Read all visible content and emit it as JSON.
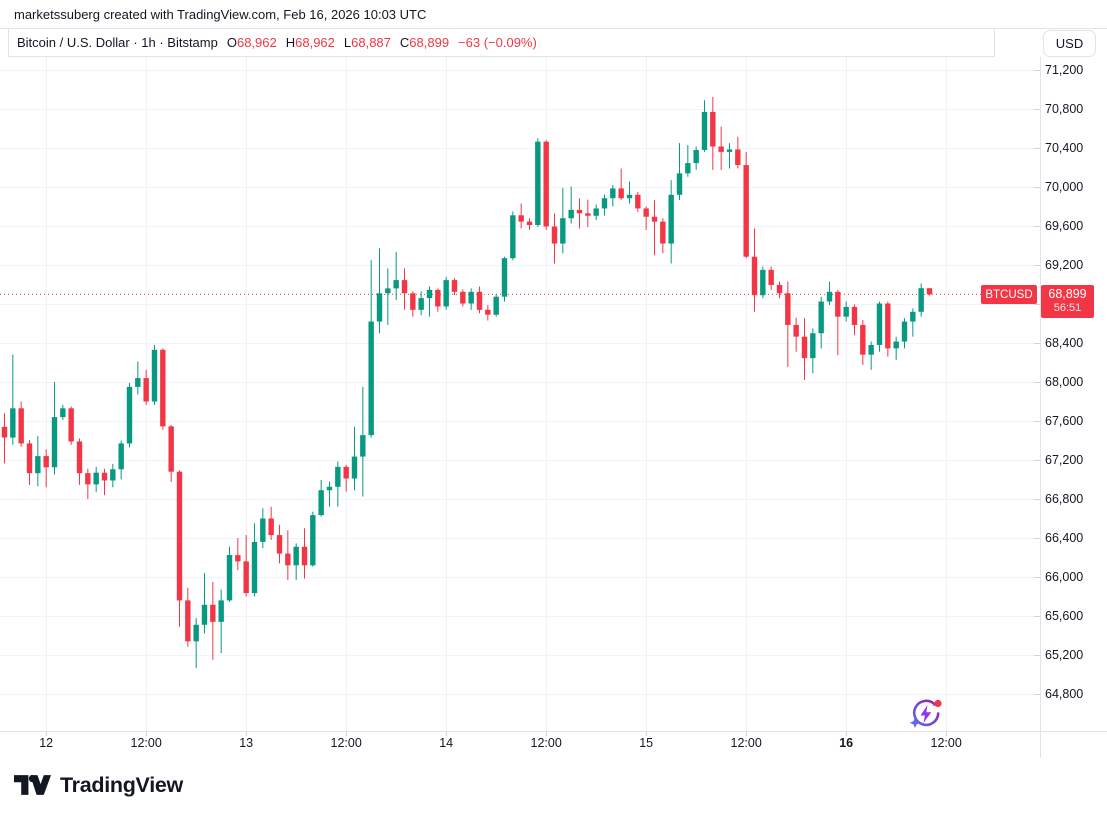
{
  "attribution": "marketssuberg created with TradingView.com, Feb 16, 2026 10:03 UTC",
  "header": {
    "symbol_title": "Bitcoin / U.S. Dollar · 1h · Bitstamp",
    "ohlc_labels": {
      "o": "O",
      "h": "H",
      "l": "L",
      "c": "C"
    },
    "ohlc_values": {
      "o": "68,962",
      "h": "68,962",
      "l": "68,887",
      "c": "68,899"
    },
    "change": "−63 (−0.09%)",
    "currency_button": "USD"
  },
  "price_scale": {
    "price_tag": {
      "price": "68,899",
      "countdown": "56:51"
    }
  },
  "symbol_marker": "BTCUSD",
  "decorations": {
    "bottom_right_icon": "lightning-refresh-icon"
  },
  "footer": {
    "brand": "TradingView"
  },
  "chart_data": {
    "type": "candlestick",
    "title": "Bitcoin / U.S. Dollar",
    "symbol": "BTCUSD",
    "exchange": "Bitstamp",
    "interval": "1h",
    "up_color": "#089981",
    "down_color": "#F23645",
    "grid": true,
    "current_price": 68899,
    "current_price_line": {
      "value": 68899,
      "style": "dotted",
      "color": "#F23645"
    },
    "y_axis": {
      "min": 64800,
      "max": 71200,
      "step": 400,
      "ticks": [
        71200,
        70800,
        70400,
        70000,
        69600,
        69200,
        68800,
        68400,
        68000,
        67600,
        67200,
        66800,
        66400,
        66000,
        65600,
        65200,
        64800
      ]
    },
    "x_axis": {
      "start": "Feb 11 19:00",
      "end": "Feb 16 10:00",
      "ticks": [
        {
          "i": 5,
          "label": "12"
        },
        {
          "i": 17,
          "label": "12:00"
        },
        {
          "i": 29,
          "label": "13"
        },
        {
          "i": 41,
          "label": "12:00"
        },
        {
          "i": 53,
          "label": "14"
        },
        {
          "i": 65,
          "label": "12:00"
        },
        {
          "i": 77,
          "label": "15"
        },
        {
          "i": 89,
          "label": "12:00"
        },
        {
          "i": 101,
          "label": "16",
          "bold": true
        },
        {
          "i": 113,
          "label": "12:00"
        }
      ]
    },
    "candle_fields": [
      "open",
      "high",
      "low",
      "close"
    ],
    "candles": [
      [
        67540,
        67680,
        67165,
        67430
      ],
      [
        67430,
        68280,
        67355,
        67730
      ],
      [
        67730,
        67800,
        67335,
        67370
      ],
      [
        67370,
        67405,
        66945,
        67065
      ],
      [
        67065,
        67445,
        66930,
        67240
      ],
      [
        67240,
        67310,
        66920,
        67125
      ],
      [
        67125,
        68000,
        67050,
        67640
      ],
      [
        67640,
        67765,
        67610,
        67730
      ],
      [
        67730,
        67750,
        67355,
        67390
      ],
      [
        67390,
        67420,
        66945,
        67065
      ],
      [
        67065,
        67110,
        66800,
        66950
      ],
      [
        66950,
        67130,
        66870,
        67070
      ],
      [
        67070,
        67110,
        66840,
        66990
      ],
      [
        66990,
        67160,
        66920,
        67105
      ],
      [
        67105,
        67400,
        67000,
        67370
      ],
      [
        67370,
        67990,
        67330,
        67950
      ],
      [
        67950,
        68210,
        67870,
        68040
      ],
      [
        68040,
        68125,
        67765,
        67800
      ],
      [
        67800,
        68380,
        67765,
        68330
      ],
      [
        68330,
        68345,
        67510,
        67545
      ],
      [
        67545,
        67560,
        66975,
        67080
      ],
      [
        67080,
        67095,
        65490,
        65760
      ],
      [
        65760,
        65890,
        65285,
        65340
      ],
      [
        65340,
        65580,
        65065,
        65510
      ],
      [
        65510,
        66040,
        65420,
        65715
      ],
      [
        65715,
        65950,
        65150,
        65540
      ],
      [
        65540,
        65870,
        65220,
        65760
      ],
      [
        65760,
        66310,
        65745,
        66225
      ],
      [
        66225,
        66400,
        66070,
        66160
      ],
      [
        66160,
        66430,
        65800,
        65835
      ],
      [
        65835,
        66550,
        65800,
        66360
      ],
      [
        66360,
        66705,
        66295,
        66600
      ],
      [
        66600,
        66720,
        66380,
        66430
      ],
      [
        66430,
        66535,
        66140,
        66240
      ],
      [
        66240,
        66480,
        65970,
        66120
      ],
      [
        66120,
        66345,
        65970,
        66310
      ],
      [
        66310,
        66500,
        65985,
        66120
      ],
      [
        66120,
        66670,
        66105,
        66635
      ],
      [
        66635,
        66995,
        66620,
        66890
      ],
      [
        66890,
        66980,
        66720,
        66925
      ],
      [
        66925,
        67185,
        66720,
        67130
      ],
      [
        67130,
        67150,
        66875,
        67010
      ],
      [
        67010,
        67540,
        66890,
        67235
      ],
      [
        67235,
        67950,
        66825,
        67455
      ],
      [
        67455,
        69250,
        67430,
        68620
      ],
      [
        68620,
        69370,
        68500,
        68910
      ],
      [
        68910,
        69165,
        68585,
        68960
      ],
      [
        68960,
        69335,
        68840,
        69045
      ],
      [
        69045,
        69165,
        68740,
        68910
      ],
      [
        68910,
        68930,
        68670,
        68740
      ],
      [
        68740,
        68930,
        68685,
        68860
      ],
      [
        68860,
        68980,
        68670,
        68945
      ],
      [
        68945,
        68960,
        68720,
        68775
      ],
      [
        68775,
        69080,
        68740,
        69045
      ],
      [
        69045,
        69065,
        68890,
        68925
      ],
      [
        68925,
        68950,
        68775,
        68805
      ],
      [
        68805,
        68960,
        68740,
        68925
      ],
      [
        68925,
        68980,
        68705,
        68740
      ],
      [
        68740,
        68790,
        68630,
        68690
      ],
      [
        68690,
        68900,
        68670,
        68875
      ],
      [
        68875,
        69285,
        68825,
        69270
      ],
      [
        69270,
        69750,
        69250,
        69710
      ],
      [
        69710,
        69830,
        69575,
        69645
      ],
      [
        69645,
        69680,
        69560,
        69610
      ],
      [
        69610,
        70500,
        69590,
        70465
      ],
      [
        70465,
        70480,
        69560,
        69595
      ],
      [
        69595,
        69730,
        69215,
        69420
      ],
      [
        69420,
        69990,
        69320,
        69680
      ],
      [
        69680,
        70005,
        69625,
        69765
      ],
      [
        69765,
        69885,
        69575,
        69730
      ],
      [
        69730,
        69870,
        69590,
        69705
      ],
      [
        69705,
        69820,
        69660,
        69780
      ],
      [
        69780,
        69920,
        69705,
        69885
      ],
      [
        69885,
        70020,
        69800,
        69985
      ],
      [
        69985,
        70190,
        69865,
        69885
      ],
      [
        69885,
        70055,
        69830,
        69920
      ],
      [
        69920,
        69950,
        69745,
        69780
      ],
      [
        69780,
        69800,
        69560,
        69695
      ],
      [
        69695,
        69865,
        69300,
        69645
      ],
      [
        69645,
        69680,
        69320,
        69420
      ],
      [
        69420,
        70070,
        69215,
        69920
      ],
      [
        69920,
        70450,
        69865,
        70140
      ],
      [
        70140,
        70430,
        70105,
        70245
      ],
      [
        70245,
        70415,
        70175,
        70380
      ],
      [
        70380,
        70890,
        70360,
        70770
      ],
      [
        70770,
        70925,
        70175,
        70415
      ],
      [
        70415,
        70620,
        70175,
        70360
      ],
      [
        70360,
        70450,
        70190,
        70385
      ],
      [
        70385,
        70515,
        70190,
        70225
      ],
      [
        70225,
        70360,
        69270,
        69285
      ],
      [
        69285,
        69575,
        68720,
        68890
      ],
      [
        68890,
        69185,
        68860,
        69150
      ],
      [
        69150,
        69185,
        68945,
        68995
      ],
      [
        68995,
        69030,
        68860,
        68910
      ],
      [
        68910,
        69030,
        68155,
        68585
      ],
      [
        68585,
        68660,
        68310,
        68465
      ],
      [
        68465,
        68655,
        68020,
        68245
      ],
      [
        68245,
        68550,
        68090,
        68500
      ],
      [
        68500,
        68875,
        68345,
        68825
      ],
      [
        68825,
        69030,
        68790,
        68925
      ],
      [
        68925,
        68945,
        68275,
        68670
      ],
      [
        68670,
        68825,
        68620,
        68770
      ],
      [
        68770,
        68795,
        68480,
        68585
      ],
      [
        68585,
        68635,
        68175,
        68280
      ],
      [
        68280,
        68415,
        68125,
        68380
      ],
      [
        68380,
        68825,
        68310,
        68805
      ],
      [
        68805,
        68825,
        68260,
        68345
      ],
      [
        68345,
        68465,
        68225,
        68415
      ],
      [
        68415,
        68655,
        68345,
        68620
      ],
      [
        68620,
        68755,
        68465,
        68720
      ],
      [
        68720,
        69010,
        68670,
        68962
      ],
      [
        68962,
        68962,
        68887,
        68899
      ]
    ]
  }
}
